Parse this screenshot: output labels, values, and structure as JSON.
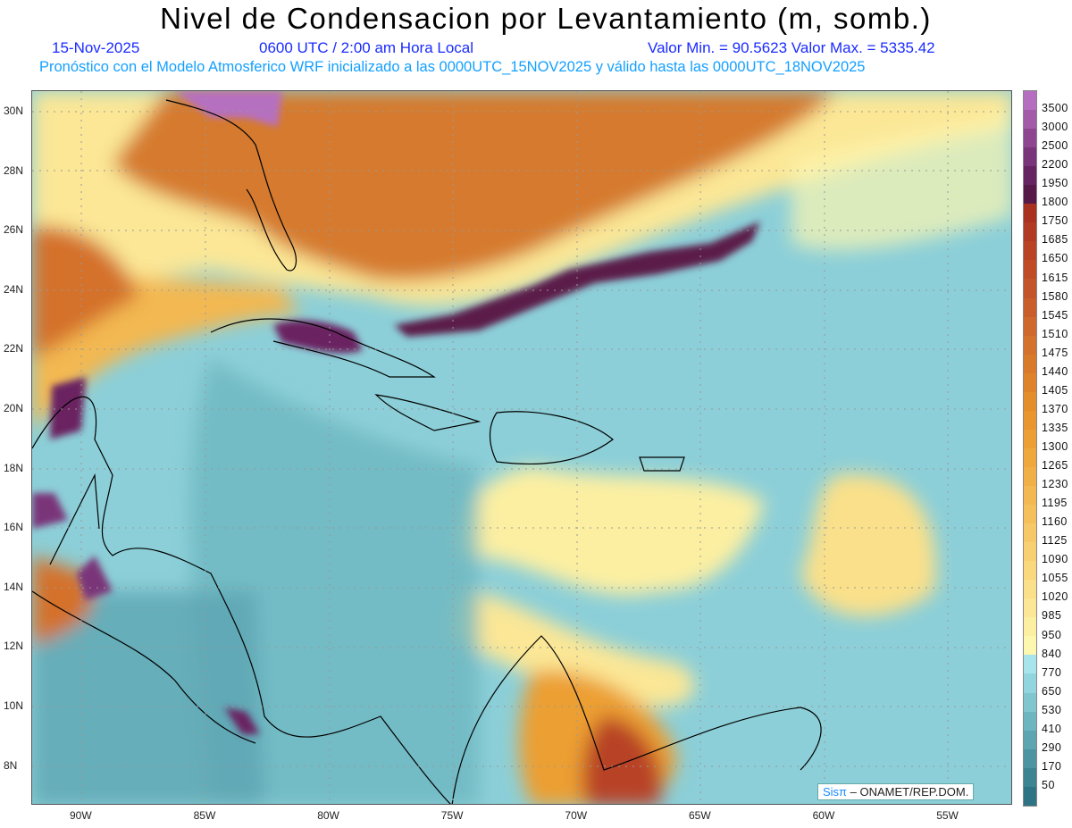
{
  "header": {
    "title": "Nivel de Condensacion por Levantamiento (m, somb.)",
    "date": "15-Nov-2025",
    "time": "0600 UTC / 2:00 am Hora Local",
    "minmax": "Valor Min. = 90.5623   Valor Max. = 5335.42",
    "forecast": "Pronóstico con el Modelo Atmosferico WRF inicializado a las 0000UTC_15NOV2025 y válido hasta las  0000UTC_18NOV2025"
  },
  "axes": {
    "lon_labels": [
      "90W",
      "85W",
      "80W",
      "75W",
      "70W",
      "65W",
      "60W",
      "55W"
    ],
    "lat_labels": [
      "30N",
      "28N",
      "26N",
      "24N",
      "22N",
      "20N",
      "18N",
      "16N",
      "14N",
      "12N",
      "10N",
      "8N"
    ]
  },
  "colorbar": {
    "labels": [
      "3500",
      "3000",
      "2500",
      "2200",
      "1950",
      "1800",
      "1750",
      "1685",
      "1650",
      "1615",
      "1580",
      "1545",
      "1510",
      "1475",
      "1440",
      "1405",
      "1370",
      "1335",
      "1300",
      "1265",
      "1230",
      "1195",
      "1160",
      "1125",
      "1090",
      "1055",
      "1020",
      "985",
      "950",
      "840",
      "770",
      "650",
      "530",
      "410",
      "290",
      "170",
      "50"
    ],
    "colors": [
      "#b66fc0",
      "#a35aa9",
      "#8f4690",
      "#7a3479",
      "#672462",
      "#571a48",
      "#a8321f",
      "#b03a22",
      "#b84325",
      "#bf4c27",
      "#c4552a",
      "#c95e2b",
      "#cf682c",
      "#d4712c",
      "#d97a2b",
      "#de832a",
      "#e38d2b",
      "#e8962d",
      "#ec9f33",
      "#efa83c",
      "#f1b046",
      "#f3b851",
      "#f5c05c",
      "#f6c867",
      "#f8d072",
      "#f9d87e",
      "#fae08a",
      "#fbe796",
      "#fcefa2",
      "#fdf7b0",
      "#a8e4ec",
      "#93d5de",
      "#80c6cf",
      "#6db6c0",
      "#5ca5b1",
      "#4c94a2",
      "#3d8493",
      "#2e7484"
    ]
  },
  "credit": {
    "logo": "Sisπ",
    "text": "– ONAMET/REP.DOM."
  }
}
